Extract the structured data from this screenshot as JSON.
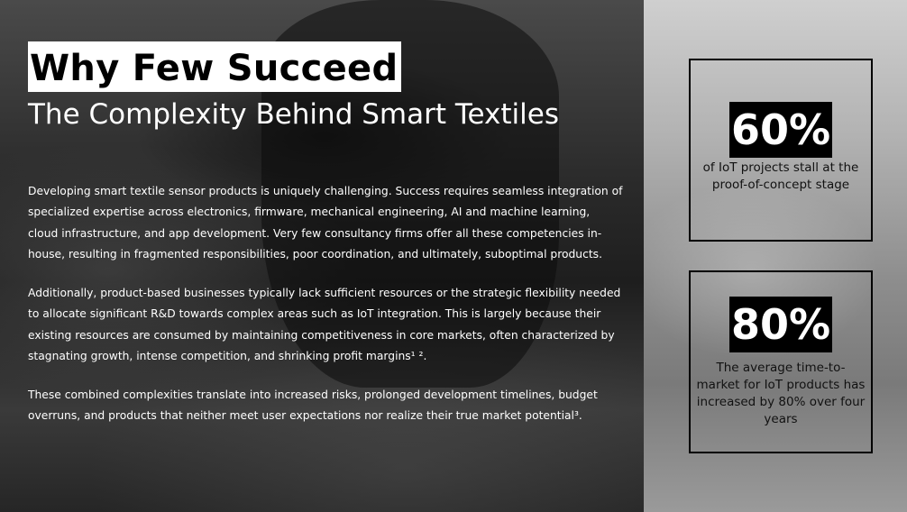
{
  "heading": {
    "title": "Why Few Succeed",
    "subtitle": "The Complexity Behind Smart Textiles"
  },
  "body": {
    "paragraphs": [
      "Developing smart textile sensor products is uniquely challenging. Success requires seamless integration of specialized expertise across electronics, firmware, mechanical engineering, AI and machine learning, cloud infrastructure, and app development. Very few consultancy firms offer all these competencies in-house, resulting in fragmented responsibilities, poor coordination, and ultimately, suboptimal products.",
      "Additionally, product-based businesses typically lack sufficient resources or the strategic flexibility needed to allocate significant R&D towards complex areas such as IoT integration. This is largely because their existing resources are consumed by maintaining competitiveness in core markets, often characterized by stagnating growth, intense competition, and shrinking profit margins¹ ².",
      "These combined complexities translate into increased risks, prolonged development timelines, budget overruns, and products that neither meet user expectations nor realize their true market potential³."
    ]
  },
  "stats": [
    {
      "value": "60%",
      "description": "of IoT projects stall at the proof-of-concept stage"
    },
    {
      "value": "80%",
      "description": "The average time-to-market for IoT products has increased by 80% over four years"
    }
  ],
  "colors": {
    "highlight_bg": "#ffffff",
    "highlight_text": "#000000",
    "stat_bg": "#000000",
    "stat_text": "#ffffff"
  }
}
